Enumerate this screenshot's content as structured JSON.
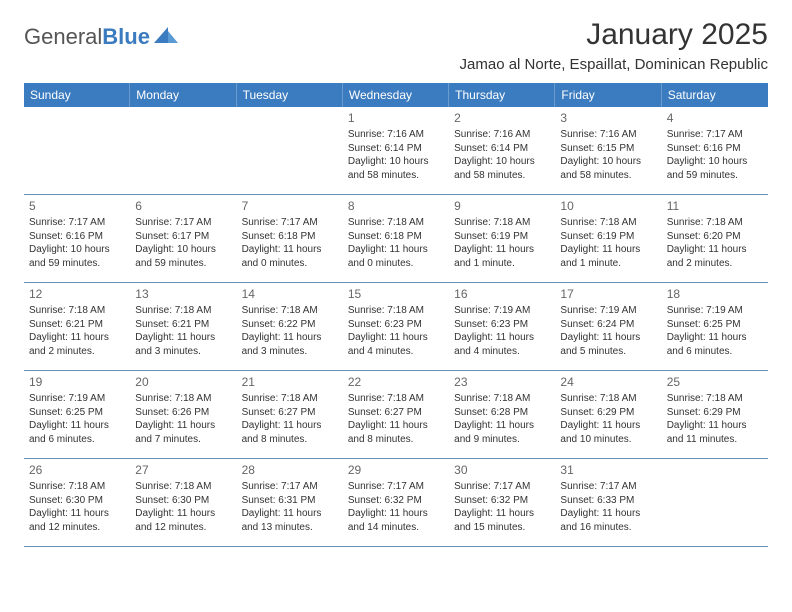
{
  "logo": {
    "text_part1": "General",
    "text_part2": "Blue"
  },
  "title": "January 2025",
  "location": "Jamao al Norte, Espaillat, Dominican Republic",
  "day_headers": [
    "Sunday",
    "Monday",
    "Tuesday",
    "Wednesday",
    "Thursday",
    "Friday",
    "Saturday"
  ],
  "colors": {
    "header_bg": "#3b7bbf",
    "header_text": "#ffffff",
    "border": "#6a91b5",
    "text": "#333333",
    "daynum": "#666666"
  },
  "typography": {
    "title_fontsize": 30,
    "location_fontsize": 15,
    "header_fontsize": 12,
    "cell_fontsize": 10,
    "daynum_fontsize": 12
  },
  "grid": {
    "columns": 7,
    "rows": 5
  },
  "days": [
    {
      "n": "",
      "sr": "",
      "ss": "",
      "dl": ""
    },
    {
      "n": "",
      "sr": "",
      "ss": "",
      "dl": ""
    },
    {
      "n": "",
      "sr": "",
      "ss": "",
      "dl": ""
    },
    {
      "n": "1",
      "sr": "Sunrise: 7:16 AM",
      "ss": "Sunset: 6:14 PM",
      "dl": "Daylight: 10 hours and 58 minutes."
    },
    {
      "n": "2",
      "sr": "Sunrise: 7:16 AM",
      "ss": "Sunset: 6:14 PM",
      "dl": "Daylight: 10 hours and 58 minutes."
    },
    {
      "n": "3",
      "sr": "Sunrise: 7:16 AM",
      "ss": "Sunset: 6:15 PM",
      "dl": "Daylight: 10 hours and 58 minutes."
    },
    {
      "n": "4",
      "sr": "Sunrise: 7:17 AM",
      "ss": "Sunset: 6:16 PM",
      "dl": "Daylight: 10 hours and 59 minutes."
    },
    {
      "n": "5",
      "sr": "Sunrise: 7:17 AM",
      "ss": "Sunset: 6:16 PM",
      "dl": "Daylight: 10 hours and 59 minutes."
    },
    {
      "n": "6",
      "sr": "Sunrise: 7:17 AM",
      "ss": "Sunset: 6:17 PM",
      "dl": "Daylight: 10 hours and 59 minutes."
    },
    {
      "n": "7",
      "sr": "Sunrise: 7:17 AM",
      "ss": "Sunset: 6:18 PM",
      "dl": "Daylight: 11 hours and 0 minutes."
    },
    {
      "n": "8",
      "sr": "Sunrise: 7:18 AM",
      "ss": "Sunset: 6:18 PM",
      "dl": "Daylight: 11 hours and 0 minutes."
    },
    {
      "n": "9",
      "sr": "Sunrise: 7:18 AM",
      "ss": "Sunset: 6:19 PM",
      "dl": "Daylight: 11 hours and 1 minute."
    },
    {
      "n": "10",
      "sr": "Sunrise: 7:18 AM",
      "ss": "Sunset: 6:19 PM",
      "dl": "Daylight: 11 hours and 1 minute."
    },
    {
      "n": "11",
      "sr": "Sunrise: 7:18 AM",
      "ss": "Sunset: 6:20 PM",
      "dl": "Daylight: 11 hours and 2 minutes."
    },
    {
      "n": "12",
      "sr": "Sunrise: 7:18 AM",
      "ss": "Sunset: 6:21 PM",
      "dl": "Daylight: 11 hours and 2 minutes."
    },
    {
      "n": "13",
      "sr": "Sunrise: 7:18 AM",
      "ss": "Sunset: 6:21 PM",
      "dl": "Daylight: 11 hours and 3 minutes."
    },
    {
      "n": "14",
      "sr": "Sunrise: 7:18 AM",
      "ss": "Sunset: 6:22 PM",
      "dl": "Daylight: 11 hours and 3 minutes."
    },
    {
      "n": "15",
      "sr": "Sunrise: 7:18 AM",
      "ss": "Sunset: 6:23 PM",
      "dl": "Daylight: 11 hours and 4 minutes."
    },
    {
      "n": "16",
      "sr": "Sunrise: 7:19 AM",
      "ss": "Sunset: 6:23 PM",
      "dl": "Daylight: 11 hours and 4 minutes."
    },
    {
      "n": "17",
      "sr": "Sunrise: 7:19 AM",
      "ss": "Sunset: 6:24 PM",
      "dl": "Daylight: 11 hours and 5 minutes."
    },
    {
      "n": "18",
      "sr": "Sunrise: 7:19 AM",
      "ss": "Sunset: 6:25 PM",
      "dl": "Daylight: 11 hours and 6 minutes."
    },
    {
      "n": "19",
      "sr": "Sunrise: 7:19 AM",
      "ss": "Sunset: 6:25 PM",
      "dl": "Daylight: 11 hours and 6 minutes."
    },
    {
      "n": "20",
      "sr": "Sunrise: 7:18 AM",
      "ss": "Sunset: 6:26 PM",
      "dl": "Daylight: 11 hours and 7 minutes."
    },
    {
      "n": "21",
      "sr": "Sunrise: 7:18 AM",
      "ss": "Sunset: 6:27 PM",
      "dl": "Daylight: 11 hours and 8 minutes."
    },
    {
      "n": "22",
      "sr": "Sunrise: 7:18 AM",
      "ss": "Sunset: 6:27 PM",
      "dl": "Daylight: 11 hours and 8 minutes."
    },
    {
      "n": "23",
      "sr": "Sunrise: 7:18 AM",
      "ss": "Sunset: 6:28 PM",
      "dl": "Daylight: 11 hours and 9 minutes."
    },
    {
      "n": "24",
      "sr": "Sunrise: 7:18 AM",
      "ss": "Sunset: 6:29 PM",
      "dl": "Daylight: 11 hours and 10 minutes."
    },
    {
      "n": "25",
      "sr": "Sunrise: 7:18 AM",
      "ss": "Sunset: 6:29 PM",
      "dl": "Daylight: 11 hours and 11 minutes."
    },
    {
      "n": "26",
      "sr": "Sunrise: 7:18 AM",
      "ss": "Sunset: 6:30 PM",
      "dl": "Daylight: 11 hours and 12 minutes."
    },
    {
      "n": "27",
      "sr": "Sunrise: 7:18 AM",
      "ss": "Sunset: 6:30 PM",
      "dl": "Daylight: 11 hours and 12 minutes."
    },
    {
      "n": "28",
      "sr": "Sunrise: 7:17 AM",
      "ss": "Sunset: 6:31 PM",
      "dl": "Daylight: 11 hours and 13 minutes."
    },
    {
      "n": "29",
      "sr": "Sunrise: 7:17 AM",
      "ss": "Sunset: 6:32 PM",
      "dl": "Daylight: 11 hours and 14 minutes."
    },
    {
      "n": "30",
      "sr": "Sunrise: 7:17 AM",
      "ss": "Sunset: 6:32 PM",
      "dl": "Daylight: 11 hours and 15 minutes."
    },
    {
      "n": "31",
      "sr": "Sunrise: 7:17 AM",
      "ss": "Sunset: 6:33 PM",
      "dl": "Daylight: 11 hours and 16 minutes."
    },
    {
      "n": "",
      "sr": "",
      "ss": "",
      "dl": ""
    }
  ]
}
